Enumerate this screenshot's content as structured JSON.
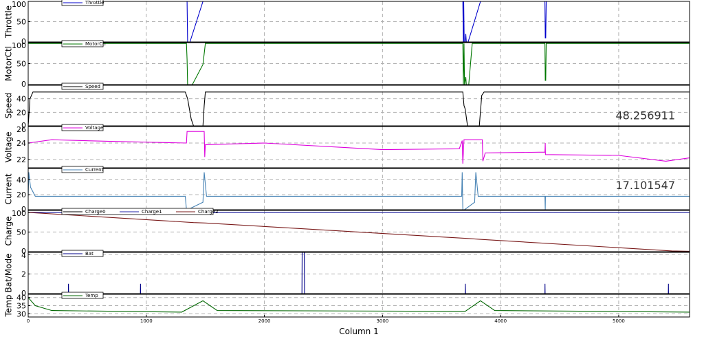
{
  "chart_data": {
    "type": "line",
    "xlabel": "Column 1",
    "xlim": [
      0,
      5600
    ],
    "x_ticks": [
      0,
      1000,
      2000,
      3000,
      4000,
      5000
    ],
    "grid": true,
    "panels": [
      {
        "ylabel": "Throttle",
        "ylim": [
          0,
          100
        ],
        "y_ticks": [
          0,
          50,
          100
        ],
        "legend": [
          "Throttle"
        ],
        "series": [
          {
            "name": "Throttle",
            "color": "#0000cc",
            "points": [
              [
                0,
                100
              ],
              [
                1340,
                100
              ],
              [
                1345,
                100
              ],
              [
                1350,
                0
              ],
              [
                1370,
                0
              ],
              [
                1480,
                100
              ],
              [
                3680,
                100
              ],
              [
                3685,
                0
              ],
              [
                3688,
                100
              ],
              [
                3692,
                0
              ],
              [
                3700,
                0
              ],
              [
                3705,
                20
              ],
              [
                3710,
                0
              ],
              [
                3725,
                0
              ],
              [
                3830,
                100
              ],
              [
                4375,
                100
              ],
              [
                4378,
                10
              ],
              [
                4382,
                10
              ],
              [
                4386,
                100
              ],
              [
                5600,
                100
              ]
            ]
          }
        ]
      },
      {
        "ylabel": "MotorCtl",
        "ylim": [
          0,
          100
        ],
        "y_ticks": [
          0,
          50,
          100
        ],
        "legend": [
          "MotorCtl"
        ],
        "series": [
          {
            "name": "MotorCtl",
            "color": "#007700",
            "points": [
              [
                0,
                98
              ],
              [
                1340,
                98
              ],
              [
                1345,
                60
              ],
              [
                1350,
                0
              ],
              [
                1390,
                0
              ],
              [
                1480,
                48
              ],
              [
                1500,
                98
              ],
              [
                3680,
                98
              ],
              [
                3685,
                0
              ],
              [
                3690,
                98
              ],
              [
                3695,
                0
              ],
              [
                3705,
                18
              ],
              [
                3710,
                0
              ],
              [
                3730,
                0
              ],
              [
                3760,
                98
              ],
              [
                4375,
                98
              ],
              [
                4378,
                10
              ],
              [
                4382,
                10
              ],
              [
                4386,
                98
              ],
              [
                5600,
                98
              ]
            ]
          }
        ]
      },
      {
        "ylabel": "Speed",
        "ylim": [
          0,
          60
        ],
        "y_ticks": [
          0,
          20,
          40
        ],
        "legend": [
          "Speed"
        ],
        "readout": "48.256911",
        "series": [
          {
            "name": "Speed",
            "color": "#000000",
            "points": [
              [
                0,
                0
              ],
              [
                15,
                40
              ],
              [
                40,
                50
              ],
              [
                1330,
                50
              ],
              [
                1350,
                40
              ],
              [
                1380,
                10
              ],
              [
                1400,
                0
              ],
              [
                1480,
                0
              ],
              [
                1490,
                30
              ],
              [
                1500,
                50
              ],
              [
                3680,
                50
              ],
              [
                3690,
                30
              ],
              [
                3700,
                25
              ],
              [
                3720,
                0
              ],
              [
                3820,
                0
              ],
              [
                3840,
                45
              ],
              [
                3860,
                50
              ],
              [
                5600,
                50
              ]
            ]
          }
        ]
      },
      {
        "ylabel": "Voltage",
        "ylim": [
          21,
          26
        ],
        "y_ticks": [
          22,
          24,
          26
        ],
        "legend": [
          "Voltage"
        ],
        "series": [
          {
            "name": "Voltage",
            "color": "#dd00dd",
            "points": [
              [
                0,
                24
              ],
              [
                200,
                24.4
              ],
              [
                700,
                24.2
              ],
              [
                1340,
                24
              ],
              [
                1345,
                25.4
              ],
              [
                1490,
                25.4
              ],
              [
                1495,
                22.3
              ],
              [
                1500,
                23.8
              ],
              [
                2000,
                24
              ],
              [
                3000,
                23.2
              ],
              [
                3650,
                23.3
              ],
              [
                3675,
                24.3
              ],
              [
                3680,
                21.5
              ],
              [
                3690,
                24.4
              ],
              [
                3845,
                24.4
              ],
              [
                3850,
                21.8
              ],
              [
                3870,
                22.8
              ],
              [
                4375,
                22.9
              ],
              [
                4378,
                24
              ],
              [
                4380,
                22.6
              ],
              [
                5000,
                22.5
              ],
              [
                5400,
                21.8
              ],
              [
                5600,
                22.2
              ]
            ]
          }
        ]
      },
      {
        "ylabel": "Current",
        "ylim": [
          0,
          55
        ],
        "y_ticks": [
          0,
          20,
          40
        ],
        "legend": [
          "Current"
        ],
        "readout": "17.101547",
        "series": [
          {
            "name": "Current",
            "color": "#4682b4",
            "points": [
              [
                0,
                18
              ],
              [
                5,
                50
              ],
              [
                20,
                30
              ],
              [
                60,
                18
              ],
              [
                1330,
                18
              ],
              [
                1340,
                0
              ],
              [
                1350,
                0
              ],
              [
                1480,
                10
              ],
              [
                1490,
                50
              ],
              [
                1510,
                18
              ],
              [
                3670,
                18
              ],
              [
                3675,
                50
              ],
              [
                3680,
                0
              ],
              [
                3695,
                0
              ],
              [
                3780,
                10
              ],
              [
                3790,
                50
              ],
              [
                3810,
                18
              ],
              [
                4375,
                18
              ],
              [
                4378,
                0
              ],
              [
                4380,
                18
              ],
              [
                5600,
                18
              ]
            ]
          }
        ]
      },
      {
        "ylabel": "Charge",
        "ylim": [
          0,
          105
        ],
        "y_ticks": [
          0,
          50,
          100
        ],
        "legend": [
          "Charge0",
          "Charge1",
          "Charge2"
        ],
        "series": [
          {
            "name": "Charge0",
            "color": "#000000",
            "points": [
              [
                0,
                100
              ],
              [
                5600,
                100
              ]
            ]
          },
          {
            "name": "Charge1",
            "color": "#2222aa",
            "points": [
              [
                0,
                100
              ],
              [
                5600,
                100
              ]
            ]
          },
          {
            "name": "Charge2",
            "color": "#7a1a1a",
            "points": [
              [
                0,
                100
              ],
              [
                1400,
                74
              ],
              [
                1500,
                73
              ],
              [
                3700,
                34
              ],
              [
                3850,
                31
              ],
              [
                5450,
                2
              ],
              [
                5600,
                1
              ]
            ]
          }
        ]
      },
      {
        "ylabel": "Bat/Mode",
        "ylim": [
          0,
          4.2
        ],
        "y_ticks": [
          0,
          2,
          4
        ],
        "legend": [
          "Bat"
        ],
        "series": [
          {
            "name": "Bat",
            "color": "#000088",
            "points": [
              [
                0,
                0
              ],
              [
                340,
                0
              ],
              [
                341,
                1
              ],
              [
                342,
                0
              ],
              [
                950,
                0
              ],
              [
                951,
                1
              ],
              [
                952,
                0
              ],
              [
                2318,
                0
              ],
              [
                2320,
                4.2
              ],
              [
                2338,
                4.2
              ],
              [
                2340,
                0
              ],
              [
                3700,
                0
              ],
              [
                3701,
                1
              ],
              [
                3702,
                0
              ],
              [
                4375,
                0
              ],
              [
                4376,
                1
              ],
              [
                4377,
                0
              ],
              [
                5420,
                0
              ],
              [
                5421,
                1
              ],
              [
                5422,
                0
              ],
              [
                5600,
                0
              ]
            ]
          }
        ]
      },
      {
        "ylabel": "Temp",
        "ylim": [
          28,
          42
        ],
        "y_ticks": [
          30,
          35,
          40
        ],
        "legend": [
          "Temp"
        ],
        "series": [
          {
            "name": "Temp",
            "color": "#006600",
            "points": [
              [
                0,
                40
              ],
              [
                60,
                35
              ],
              [
                200,
                32
              ],
              [
                1300,
                31
              ],
              [
                1480,
                38
              ],
              [
                1500,
                37
              ],
              [
                1600,
                32
              ],
              [
                3700,
                31.5
              ],
              [
                3830,
                38
              ],
              [
                3850,
                37
              ],
              [
                3950,
                32
              ],
              [
                5600,
                31
              ]
            ]
          }
        ]
      }
    ]
  }
}
